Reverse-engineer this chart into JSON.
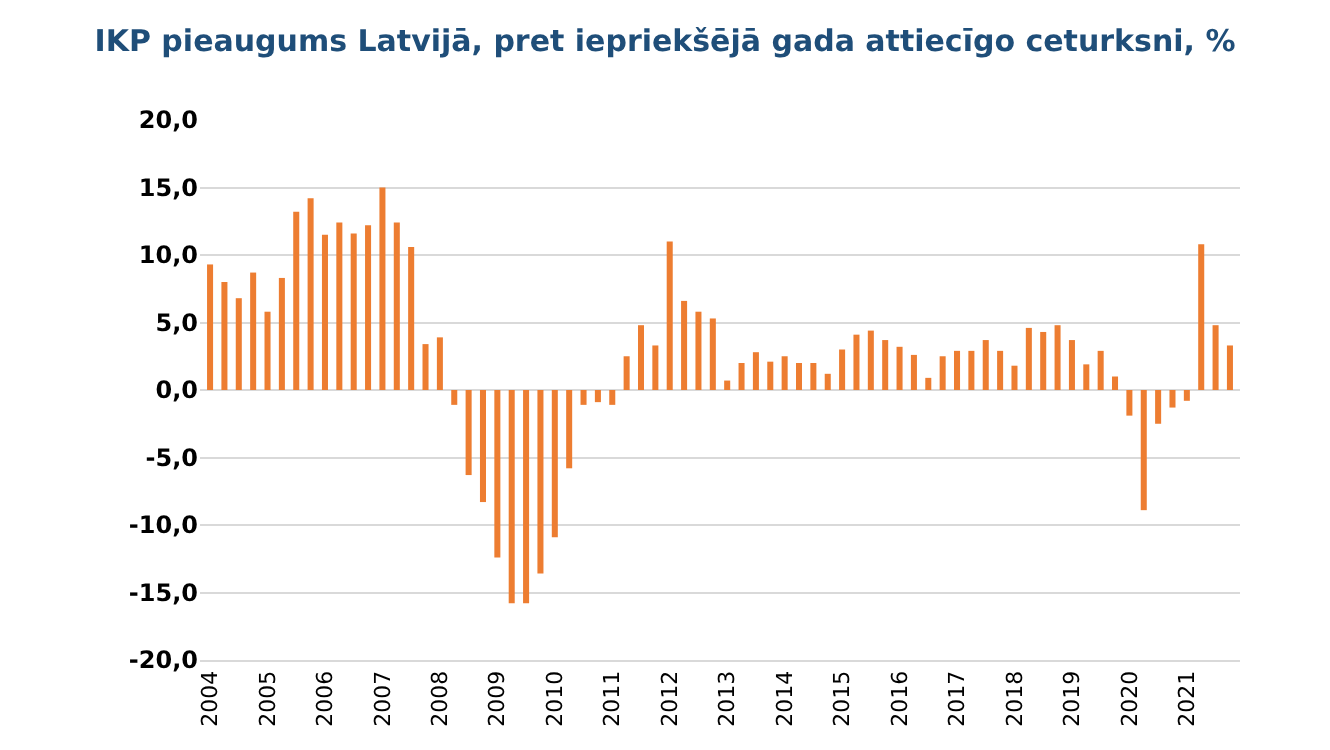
{
  "chart_data": {
    "type": "bar",
    "title": "IKP pieaugums Latvijā, pret iepriekšējā gada attiecīgo ceturksni, %",
    "categories": [
      "2004",
      null,
      null,
      null,
      "2005",
      null,
      null,
      null,
      "2006",
      null,
      null,
      null,
      "2007",
      null,
      null,
      null,
      "2008",
      null,
      null,
      null,
      "2009",
      null,
      null,
      null,
      "2010",
      null,
      null,
      null,
      "2011",
      null,
      null,
      null,
      "2012",
      null,
      null,
      null,
      "2013",
      null,
      null,
      null,
      "2014",
      null,
      null,
      null,
      "2015",
      null,
      null,
      null,
      "2016",
      null,
      null,
      null,
      "2017",
      null,
      null,
      null,
      "2018",
      null,
      null,
      null,
      "2019",
      null,
      null,
      null,
      "2020",
      null,
      null,
      null,
      "2021",
      null,
      null,
      null
    ],
    "values": [
      9.3,
      8.0,
      6.8,
      8.7,
      5.8,
      8.3,
      13.2,
      14.2,
      11.5,
      12.4,
      11.6,
      12.2,
      15.0,
      12.4,
      10.6,
      3.4,
      3.9,
      -1.1,
      -6.3,
      -8.3,
      -12.4,
      -15.8,
      -15.8,
      -13.6,
      -10.9,
      -5.8,
      -1.1,
      -0.9,
      -1.1,
      2.5,
      4.8,
      3.3,
      11.0,
      6.6,
      5.8,
      5.3,
      0.7,
      2.0,
      2.8,
      2.1,
      2.5,
      2.0,
      2.0,
      1.2,
      3.0,
      4.1,
      4.4,
      3.7,
      3.2,
      2.6,
      0.9,
      2.5,
      2.9,
      2.9,
      3.7,
      2.9,
      1.8,
      4.6,
      4.3,
      4.8,
      3.7,
      1.9,
      2.9,
      1.0,
      -1.9,
      -8.9,
      -2.5,
      -1.3,
      -0.8,
      10.8,
      4.8,
      3.3
    ],
    "color": "#ed7d31",
    "ylim": [
      -20,
      20
    ],
    "yticks": [
      {
        "value": -20,
        "label": "-20,0"
      },
      {
        "value": -15,
        "label": "-15,0"
      },
      {
        "value": -10,
        "label": "-10,0"
      },
      {
        "value": -5,
        "label": "-5,0"
      },
      {
        "value": 0,
        "label": "0,0"
      },
      {
        "value": 5,
        "label": "5,0"
      },
      {
        "value": 10,
        "label": "10,0"
      },
      {
        "value": 15,
        "label": "15,0"
      },
      {
        "value": 20,
        "label": "20,0"
      }
    ],
    "grid": "y"
  }
}
